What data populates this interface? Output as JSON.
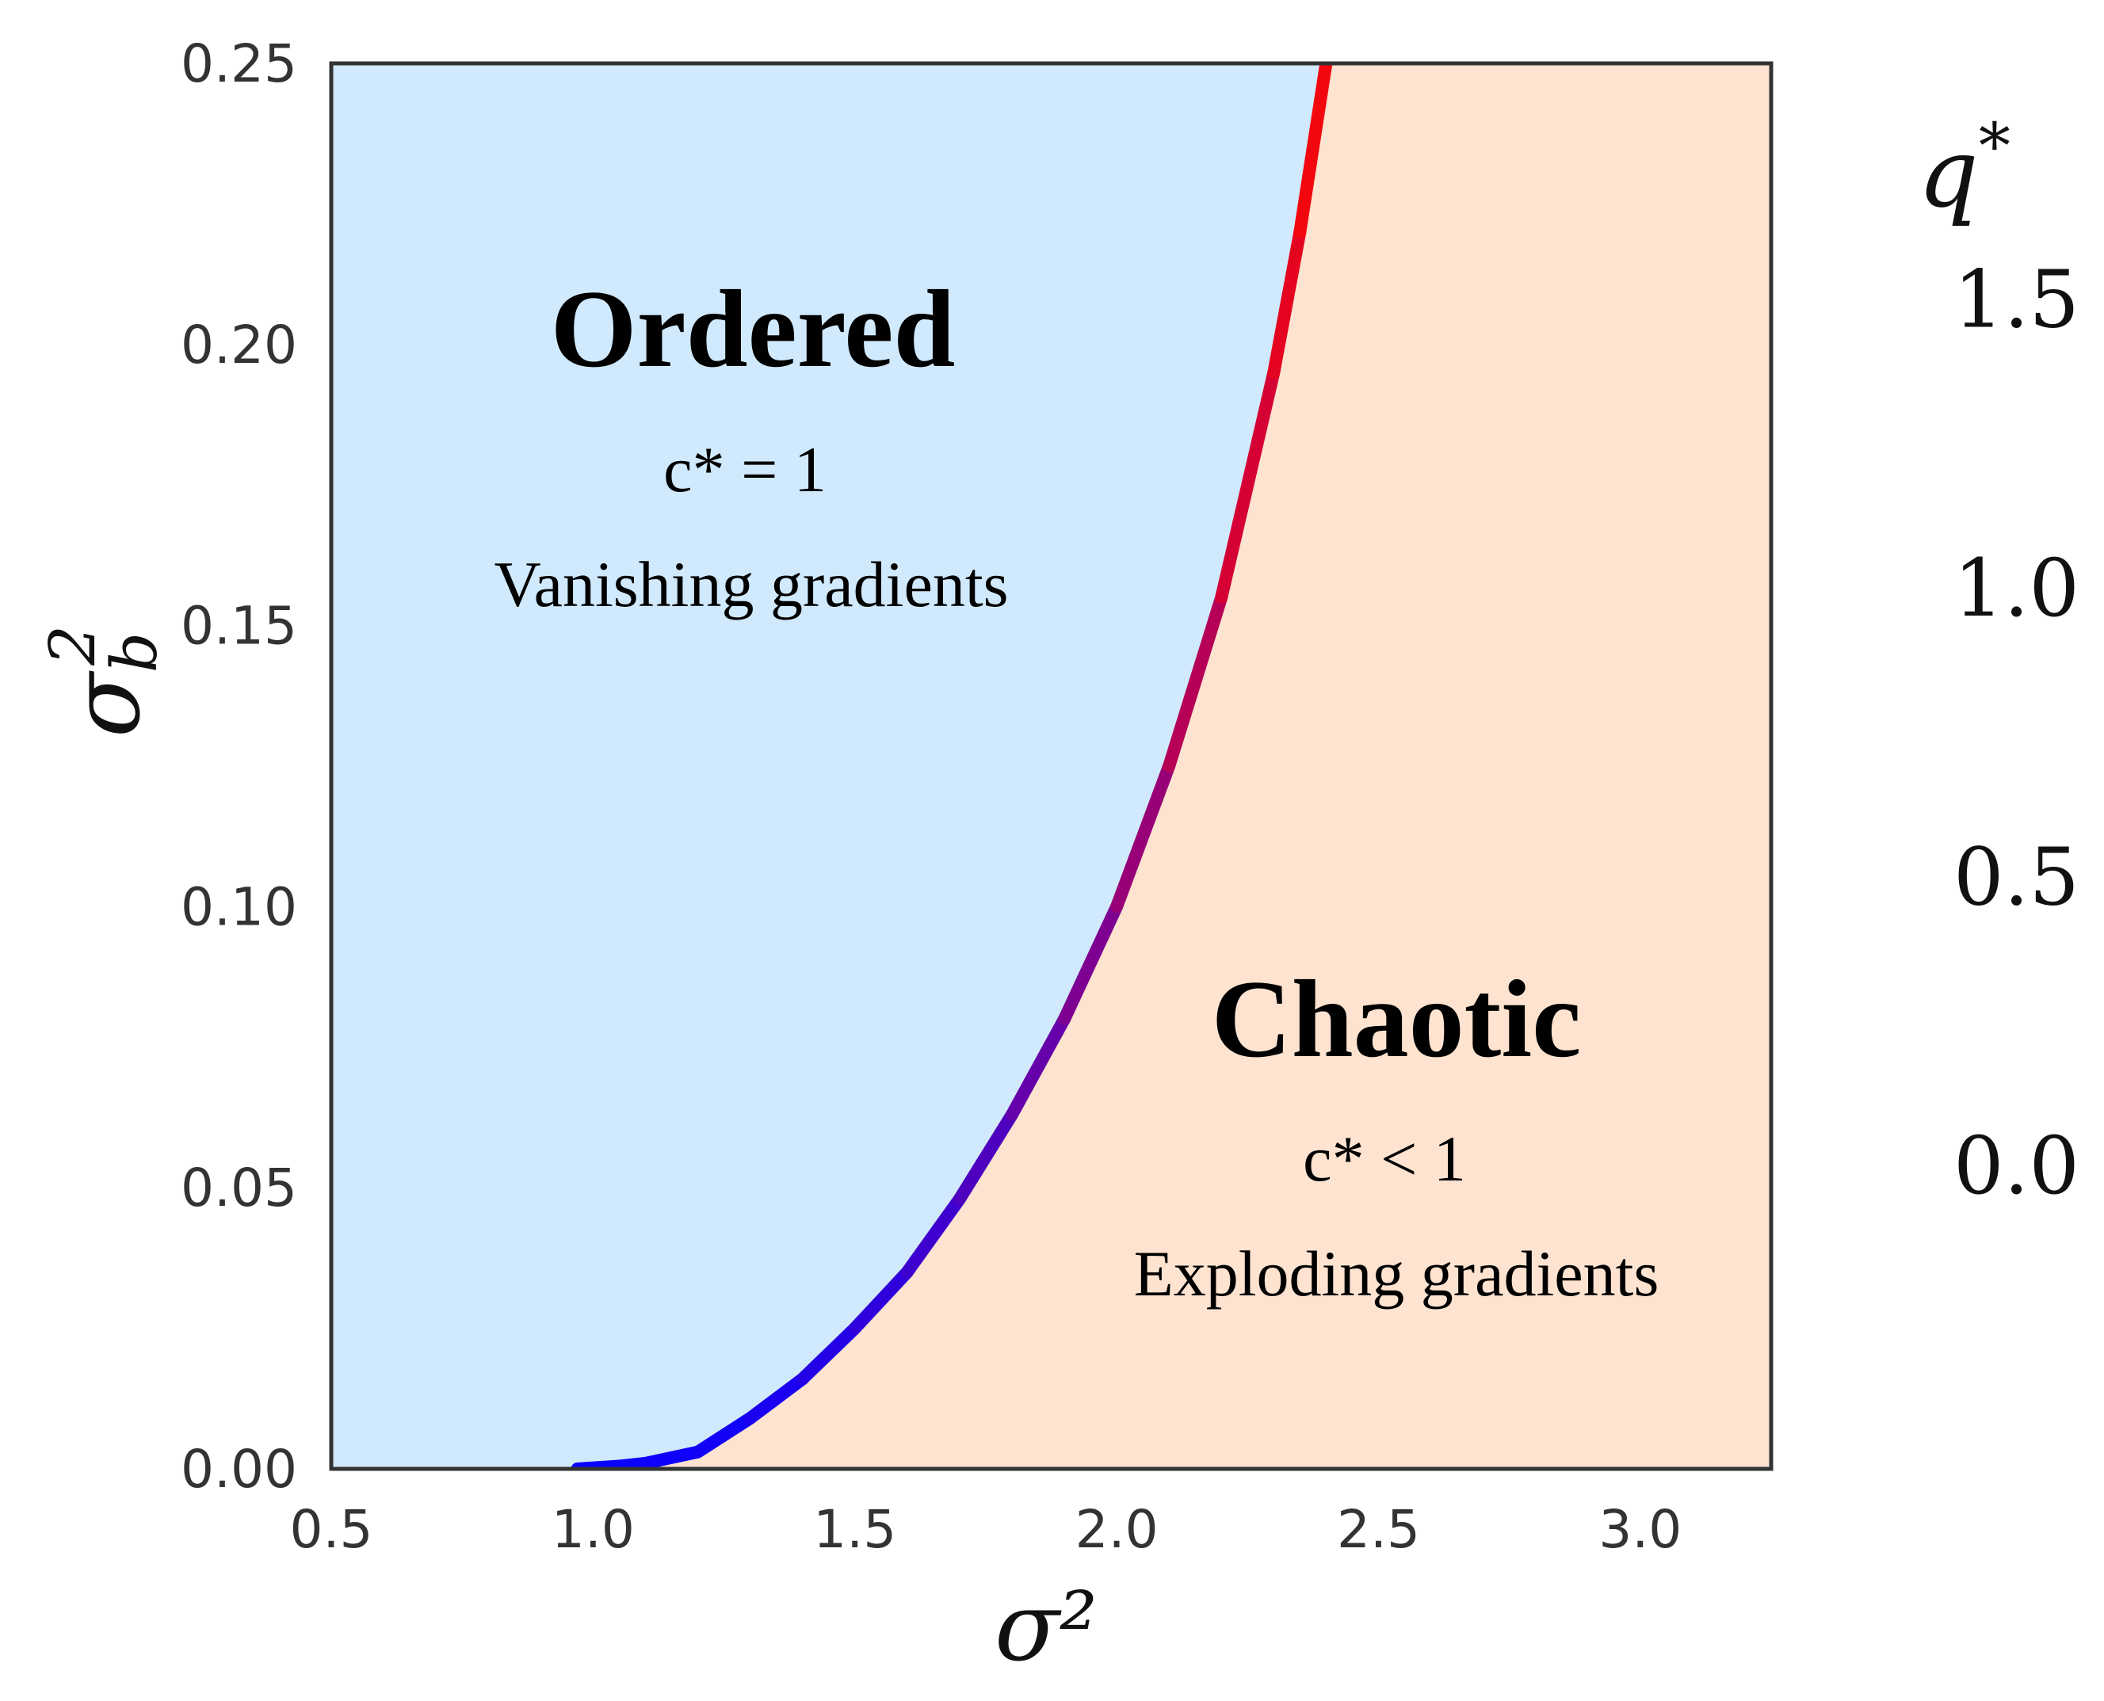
{
  "chart_data": {
    "type": "line",
    "xlabel": "σ²",
    "ylabel": "σ_b²",
    "xlim": [
      0.5,
      3.25
    ],
    "ylim": [
      0.0,
      0.25
    ],
    "x_ticks": [
      "0.5",
      "1.0",
      "1.5",
      "2.0",
      "2.5",
      "3.0"
    ],
    "y_ticks": [
      "0.00",
      "0.05",
      "0.10",
      "0.15",
      "0.20",
      "0.25"
    ],
    "grid": false,
    "series": [
      {
        "x": [
          0.97,
          1.05,
          1.1,
          1.2,
          1.3,
          1.4,
          1.5,
          1.6,
          1.7,
          1.8,
          1.9,
          2.0,
          2.1,
          2.2,
          2.3,
          2.35,
          2.4
        ],
        "y": [
          0.0,
          0.0005,
          0.001,
          0.003,
          0.009,
          0.016,
          0.025,
          0.035,
          0.048,
          0.063,
          0.08,
          0.1,
          0.125,
          0.155,
          0.195,
          0.22,
          0.25
        ],
        "color_value_q": [
          0.0,
          0.005,
          0.01,
          0.03,
          0.06,
          0.1,
          0.16,
          0.22,
          0.3,
          0.4,
          0.52,
          0.65,
          0.8,
          0.98,
          1.2,
          1.33,
          1.5
        ]
      }
    ],
    "regions": [
      {
        "title": "Ordered",
        "condition": "c* = 1",
        "note": "Vanishing gradients",
        "color": "#d0e9fc"
      },
      {
        "title": "Chaotic",
        "condition": "c* < 1",
        "note": "Exploding gradients",
        "color": "#fde3d0"
      }
    ],
    "colorbar": {
      "label": "q*",
      "range": [
        0.0,
        1.55
      ],
      "ticks": [
        "0.0",
        "0.5",
        "1.0",
        "1.5"
      ],
      "colors": [
        "#0a00ff",
        "#7000a0",
        "#d0003a",
        "#ff0a00"
      ]
    }
  }
}
